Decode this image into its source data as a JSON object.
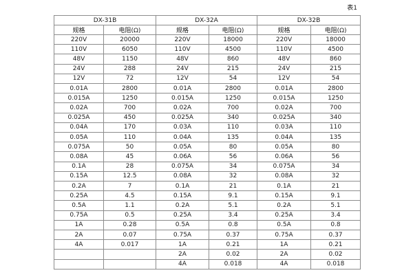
{
  "page": {
    "caption": "表1"
  },
  "table": {
    "groups": [
      {
        "name": "DX-31B",
        "col_headers": [
          "规格",
          "电阻(Ω)"
        ]
      },
      {
        "name": "DX-32A",
        "col_headers": [
          "规格",
          "电阻(Ω)"
        ]
      },
      {
        "name": "DX-32B",
        "col_headers": [
          "规格",
          "电阻(Ω)"
        ]
      }
    ],
    "rows": [
      [
        "220V",
        "20000",
        "220V",
        "18000",
        "220V",
        "18000"
      ],
      [
        "110V",
        "6050",
        "110V",
        "4500",
        "110V",
        "4500"
      ],
      [
        "48V",
        "1150",
        "48V",
        "860",
        "48V",
        "860"
      ],
      [
        "24V",
        "288",
        "24V",
        "215",
        "24V",
        "215"
      ],
      [
        "12V",
        "72",
        "12V",
        "54",
        "12V",
        "54"
      ],
      [
        "0.01A",
        "2800",
        "0.01A",
        "2800",
        "0.01A",
        "2800"
      ],
      [
        "0.015A",
        "1250",
        "0.015A",
        "1250",
        "0.015A",
        "1250"
      ],
      [
        "0.02A",
        "700",
        "0.02A",
        "700",
        "0.02A",
        "700"
      ],
      [
        "0.025A",
        "450",
        "0.025A",
        "340",
        "0.025A",
        "340"
      ],
      [
        "0.04A",
        "170",
        "0.03A",
        "110",
        "0.03A",
        "110"
      ],
      [
        "0.05A",
        "110",
        "0.04A",
        "135",
        "0.04A",
        "135"
      ],
      [
        "0.075A",
        "50",
        "0.05A",
        "80",
        "0.05A",
        "80"
      ],
      [
        "0.08A",
        "45",
        "0.06A",
        "56",
        "0.06A",
        "56"
      ],
      [
        "0.1A",
        "28",
        "0.075A",
        "34",
        "0.075A",
        "34"
      ],
      [
        "0.15A",
        "12.5",
        "0.08A",
        "32",
        "0.08A",
        "32"
      ],
      [
        "0.2A",
        "7",
        "0.1A",
        "21",
        "0.1A",
        "21"
      ],
      [
        "0.25A",
        "4.5",
        "0.15A",
        "9.1",
        "0.15A",
        "9.1"
      ],
      [
        "0.5A",
        "1.1",
        "0.2A",
        "5.1",
        "0.2A",
        "5.1"
      ],
      [
        "0.75A",
        "0.5",
        "0.25A",
        "3.4",
        "0.25A",
        "3.4"
      ],
      [
        "1A",
        "0.28",
        "0.5A",
        "0.8",
        "0.5A",
        "0.8"
      ],
      [
        "2A",
        "0.07",
        "0.75A",
        "0.37",
        "0.75A",
        "0.37"
      ],
      [
        "4A",
        "0.017",
        "1A",
        "0.21",
        "1A",
        "0.21"
      ],
      [
        "",
        "",
        "2A",
        "0.02",
        "2A",
        "0.02"
      ],
      [
        "",
        "",
        "4A",
        "0.018",
        "4A",
        "0.018"
      ]
    ],
    "colors": {
      "border_outer": "#6e6e6e",
      "border_inner": "#8c8c8c",
      "text": "#1c1c1c",
      "background": "#ffffff"
    }
  }
}
